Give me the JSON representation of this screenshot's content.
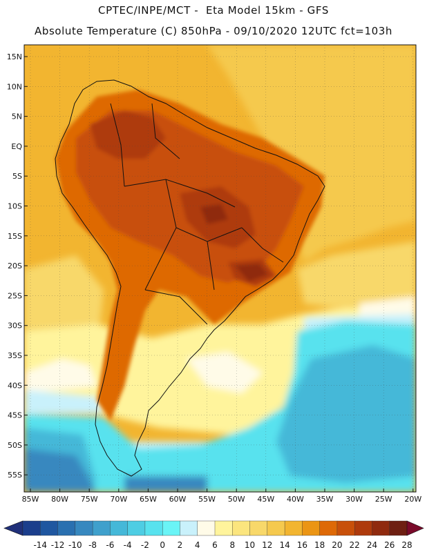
{
  "header": {
    "line1": "CPTEC/INPE/MCT -  Eta Model 15km - GFS",
    "line2": "Absolute Temperature (C) 850hPa - 09/10/2020 12UTC fct=103h"
  },
  "axes": {
    "lat_labels": [
      "15N",
      "10N",
      "5N",
      "EQ",
      "5S",
      "10S",
      "15S",
      "20S",
      "25S",
      "30S",
      "35S",
      "40S",
      "45S",
      "50S",
      "55S"
    ],
    "lon_labels": [
      "85W",
      "80W",
      "75W",
      "70W",
      "65W",
      "60W",
      "55W",
      "50W",
      "45W",
      "40W",
      "35W",
      "30W",
      "25W",
      "20W"
    ]
  },
  "colorbar": {
    "labels": [
      "-14",
      "-12",
      "-10",
      "-8",
      "-6",
      "-4",
      "-2",
      "0",
      "2",
      "4",
      "6",
      "8",
      "10",
      "12",
      "14",
      "16",
      "18",
      "20",
      "22",
      "24",
      "26",
      "28"
    ],
    "colors": [
      "#1b3e8c",
      "#1f57a0",
      "#2a70b0",
      "#3788bf",
      "#3fa0cc",
      "#45b8d8",
      "#4ecde3",
      "#58e2ee",
      "#6af4f6",
      "#c9f1fb",
      "#fffbe8",
      "#fff49c",
      "#fbe57e",
      "#f8d86a",
      "#f5c94e",
      "#f2b530",
      "#eb9514",
      "#de6906",
      "#c8500a",
      "#ae3a0c",
      "#8f2a0e",
      "#6e1f12"
    ],
    "low_arrow_color": "#20307a",
    "high_arrow_color": "#7a0a2a"
  },
  "palette": {
    "bg_default": "#f2b530",
    "ocean_warm": "#f5c94e",
    "ocean_mild": "#f8d86a",
    "pale_yellow": "#fff49c",
    "cream": "#fffbe8",
    "pale_cyan": "#c9f1fb",
    "cyan": "#58e2ee",
    "light_blue": "#45b8d8",
    "mid_blue": "#3788bf",
    "land_orange": "#de6906",
    "land_red": "#c8500a",
    "land_dark": "#ae3a0c",
    "land_core": "#8f2a0e"
  }
}
